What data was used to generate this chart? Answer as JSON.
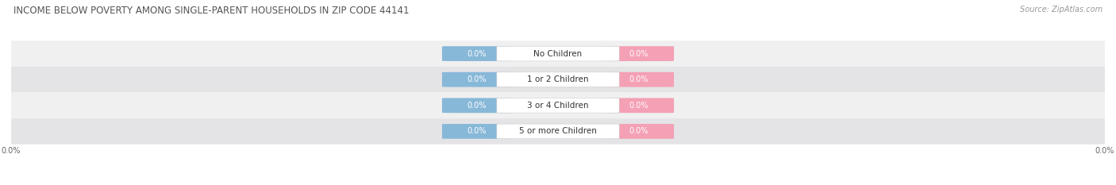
{
  "title": "INCOME BELOW POVERTY AMONG SINGLE-PARENT HOUSEHOLDS IN ZIP CODE 44141",
  "source": "Source: ZipAtlas.com",
  "categories": [
    "No Children",
    "1 or 2 Children",
    "3 or 4 Children",
    "5 or more Children"
  ],
  "father_values": [
    0.0,
    0.0,
    0.0,
    0.0
  ],
  "mother_values": [
    0.0,
    0.0,
    0.0,
    0.0
  ],
  "father_color": "#88B8D8",
  "mother_color": "#F4A0B5",
  "row_bg_odd": "#F0F0F0",
  "row_bg_even": "#E4E4E6",
  "title_fontsize": 8.5,
  "source_fontsize": 7,
  "label_fontsize": 7.5,
  "value_fontsize": 7,
  "background_color": "#FFFFFF"
}
